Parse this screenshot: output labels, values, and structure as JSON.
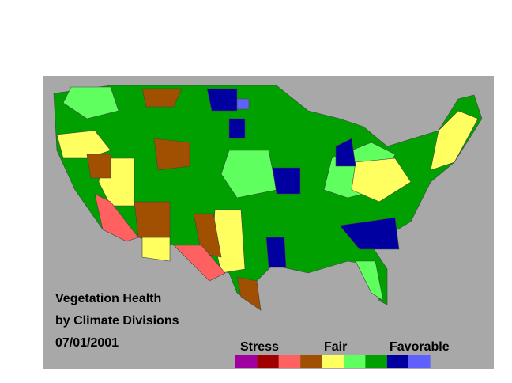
{
  "map": {
    "title_lines": [
      "Vegetation Health",
      "by Climate Divisions",
      "07/01/2001"
    ],
    "legend": {
      "labels": [
        "Stress",
        "Fair",
        "Favorable"
      ],
      "colors": [
        "#a000a0",
        "#a00000",
        "#ff6060",
        "#a05000",
        "#ffff60",
        "#60ff60",
        "#00a000",
        "#0000a0",
        "#6060ff"
      ]
    }
  }
}
